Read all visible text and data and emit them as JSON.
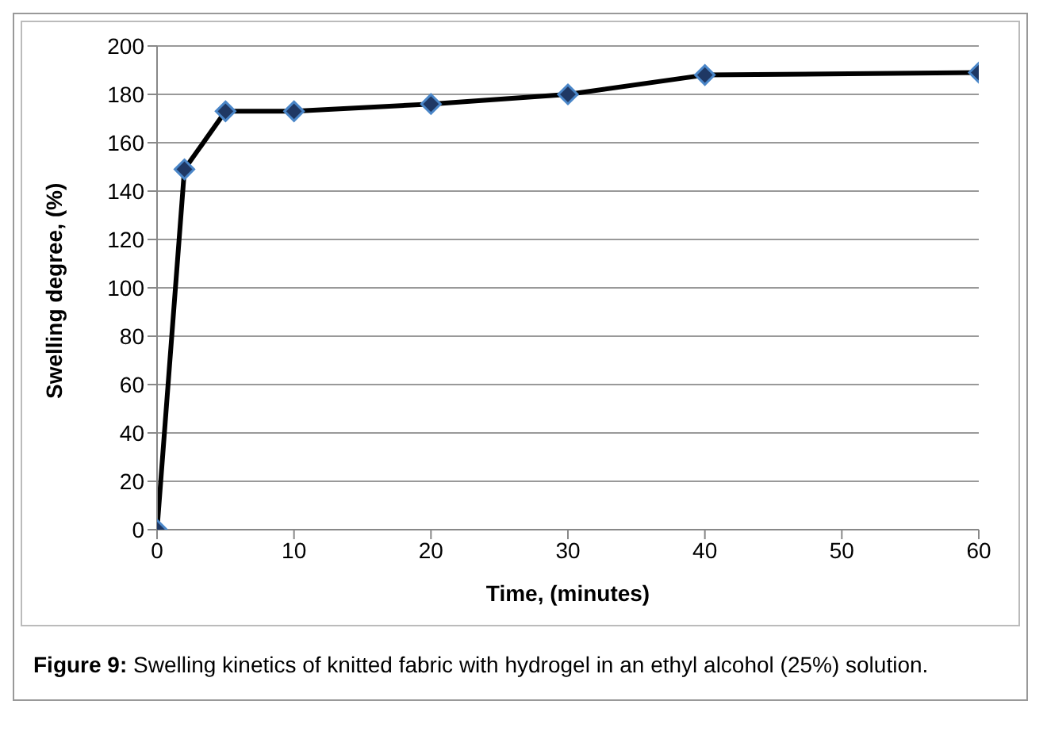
{
  "chart_data": {
    "type": "line",
    "xlabel": "Time, (minutes)",
    "ylabel": "Swelling degree, (%)",
    "x": [
      0,
      2,
      5,
      10,
      20,
      30,
      40,
      60
    ],
    "series": [
      {
        "color": "#000000",
        "values": [
          0,
          149,
          173,
          173,
          176,
          180,
          188,
          189
        ]
      }
    ],
    "xlim": [
      0,
      60
    ],
    "xticks": [
      0,
      10,
      20,
      30,
      40,
      50,
      60
    ],
    "ylim": [
      0,
      200
    ],
    "yticks": [
      0,
      20,
      40,
      60,
      80,
      100,
      120,
      140,
      160,
      180,
      200
    ],
    "grid": "y",
    "marker": "diamond",
    "line_style": "solid",
    "legend": false,
    "annotations": [
      "Figure 9: Swelling kinetics of knitted fabric with hydrogel in an ethyl alcohol (25%) solution."
    ]
  }
}
